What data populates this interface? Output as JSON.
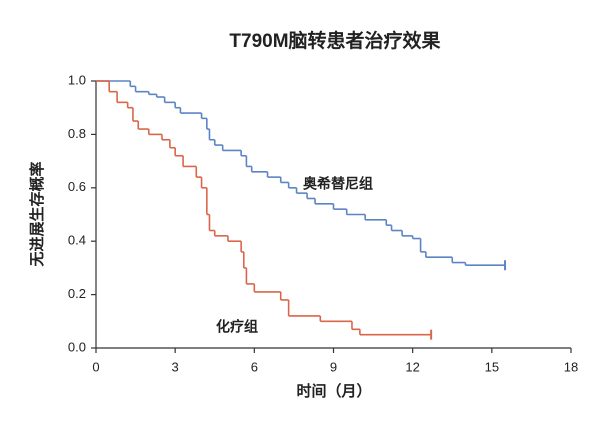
{
  "chart_data": {
    "type": "step",
    "title": "T790M脑转患者治疗效果",
    "x_label": "时间（月）",
    "y_label": "无进展生存概率",
    "xlim": [
      0,
      18
    ],
    "xticks": [
      0,
      3,
      6,
      9,
      12,
      15,
      18
    ],
    "ylim": [
      0,
      1
    ],
    "yticks": [
      {
        "value": 0,
        "label": "0.0"
      },
      0.2,
      0.4,
      0.6,
      0.8,
      {
        "value": 1,
        "label": "1.0"
      }
    ],
    "series": [
      {
        "name": "奥希替尼组",
        "color": "#5b84c4",
        "x": [
          0,
          1.3,
          1.5,
          2.0,
          2.3,
          2.6,
          3.0,
          3.2,
          4.0,
          4.2,
          4.3,
          4.5,
          4.8,
          5.5,
          5.7,
          5.9,
          6.5,
          7.0,
          7.3,
          7.6,
          8.0,
          8.3,
          9.0,
          9.5,
          10.2,
          11.0,
          11.2,
          11.6,
          12.0,
          12.3,
          12.5,
          13.5,
          14.0,
          15.5
        ],
        "values": [
          1.0,
          0.98,
          0.96,
          0.95,
          0.94,
          0.92,
          0.9,
          0.88,
          0.86,
          0.82,
          0.78,
          0.76,
          0.74,
          0.72,
          0.68,
          0.66,
          0.64,
          0.62,
          0.6,
          0.58,
          0.56,
          0.54,
          0.52,
          0.5,
          0.48,
          0.46,
          0.44,
          0.42,
          0.41,
          0.36,
          0.34,
          0.32,
          0.31,
          0.31
        ]
      },
      {
        "name": "化疗组",
        "color": "#d9664a",
        "x": [
          0,
          0.5,
          0.8,
          1.2,
          1.4,
          1.6,
          2.0,
          2.5,
          2.8,
          3.0,
          3.3,
          3.8,
          4.0,
          4.2,
          4.3,
          4.5,
          5.0,
          5.5,
          5.6,
          5.7,
          6.0,
          7.0,
          7.3,
          8.5,
          9.7,
          10.0,
          12.7
        ],
        "values": [
          1.0,
          0.96,
          0.92,
          0.9,
          0.85,
          0.82,
          0.8,
          0.78,
          0.75,
          0.72,
          0.68,
          0.64,
          0.6,
          0.5,
          0.44,
          0.42,
          0.4,
          0.36,
          0.3,
          0.24,
          0.21,
          0.18,
          0.12,
          0.1,
          0.07,
          0.05,
          0.05
        ]
      }
    ]
  }
}
